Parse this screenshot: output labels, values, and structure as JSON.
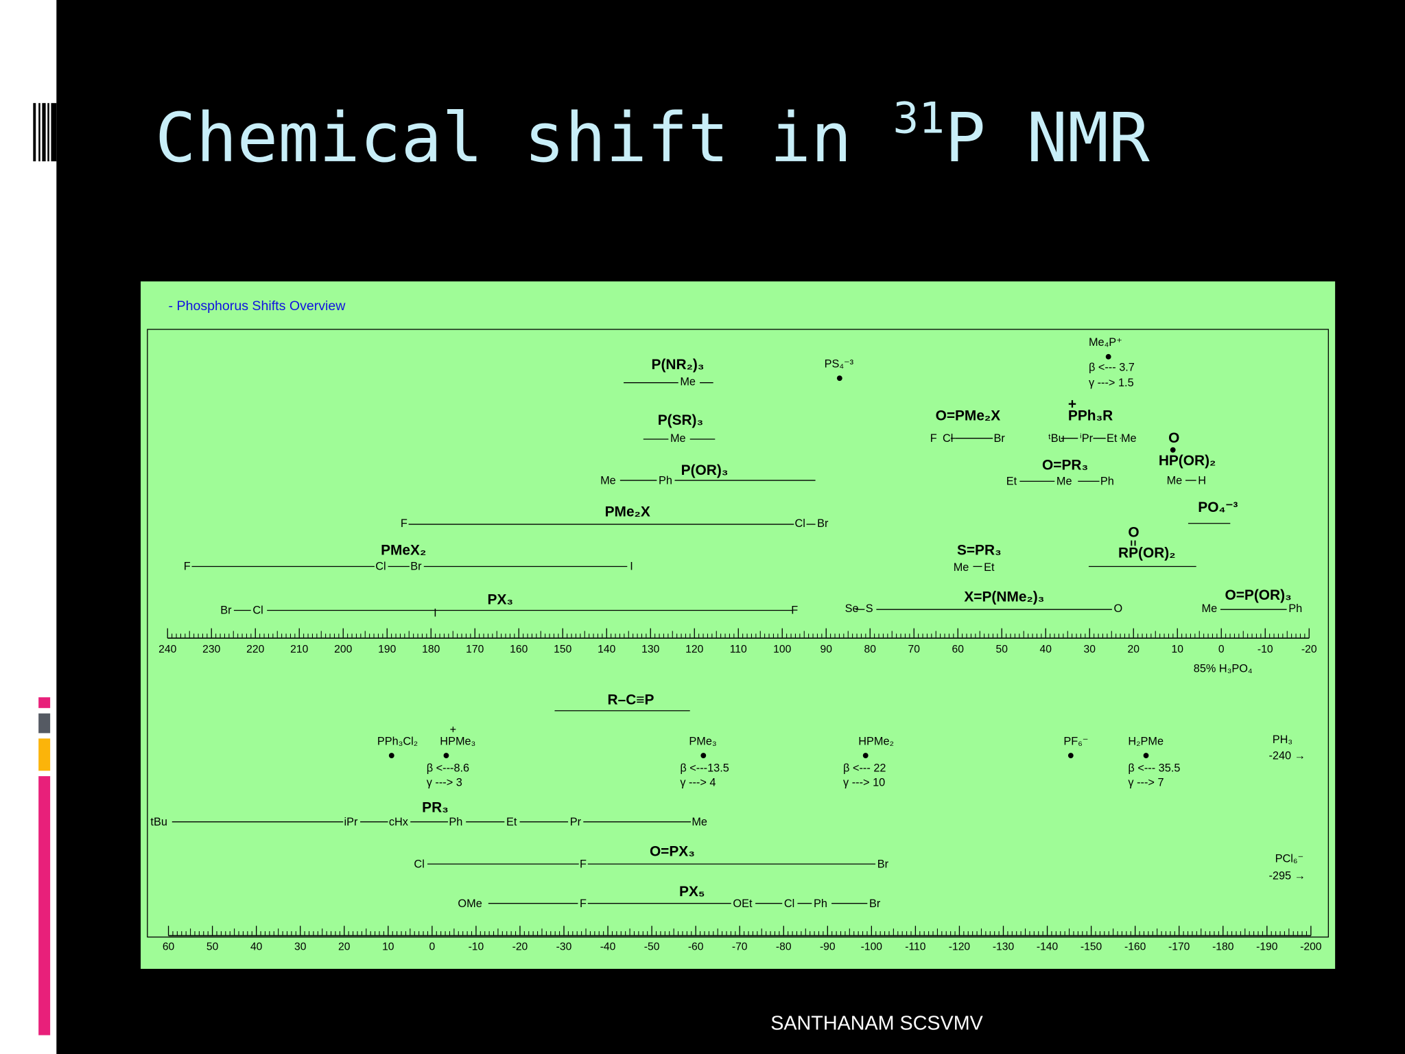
{
  "title": {
    "text": "Chemical shift in ",
    "superscript": "31",
    "rest": "P NMR"
  },
  "panel_title": "- Phosphorus Shifts Overview",
  "top_scale": {
    "ticks": [
      240,
      230,
      220,
      210,
      200,
      190,
      180,
      170,
      160,
      150,
      140,
      130,
      120,
      110,
      100,
      90,
      80,
      70,
      60,
      50,
      40,
      30,
      20,
      10,
      0,
      -10,
      -20
    ],
    "reference": "85% H₃PO₄"
  },
  "bottom_scale": {
    "ticks": [
      60,
      50,
      40,
      30,
      20,
      10,
      0,
      -10,
      -20,
      -30,
      -40,
      -50,
      -60,
      -70,
      -80,
      -90,
      -100,
      -110,
      -120,
      -130,
      -140,
      -150,
      -160,
      -170,
      -180,
      -190,
      -200
    ]
  },
  "labels": [
    "P(NR₂)₃",
    "Me",
    "PS₄⁻³",
    "Me₄P⁺",
    "β <--- 3.7",
    "γ ---> 1.5",
    "P(SR)₃",
    "Me",
    "O=PMe₂X",
    "F",
    "Cl",
    "Br",
    "+",
    "PPh₃R",
    "ᵗBu",
    "ⁱPr",
    "Et",
    "Me",
    "O",
    "HP(OR)₂",
    "Me",
    "H",
    "P(OR)₃",
    "Me",
    "Ph",
    "O=PR₃",
    "Et",
    "Me",
    "Ph",
    "PO₄⁻³",
    "PMe₂X",
    "F",
    "Cl",
    "Br",
    "PMeX₂",
    "F",
    "Cl",
    "Br",
    "I",
    "S=PR₃",
    "Me",
    "Et",
    "O",
    "RP(OR)₂",
    "PX₃",
    "Br",
    "Cl",
    "I",
    "F",
    "Se",
    "S",
    "X=P(NMe₂)₃",
    "O",
    "O=P(OR)₃",
    "Me",
    "Ph",
    "R–C≡P",
    "PPh₃Cl₂",
    "+",
    "HPMe₃",
    "β <---8.6",
    "γ ---> 3",
    "PMe₃",
    "β <---13.5",
    "γ ---> 4",
    "HPMe₂",
    "β <--- 22",
    "γ ---> 10",
    "PF₆⁻",
    "H₂PMe",
    "β <--- 35.5",
    "γ ---> 7",
    "PH₃",
    "-240 →",
    "PR₃",
    "tBu",
    "iPr",
    "cHx",
    "Ph",
    "Et",
    "Pr",
    "Me",
    "O=PX₃",
    "Cl",
    "F",
    "Br",
    "PCl₆⁻",
    "-295 →",
    "PX₅",
    "OMe",
    "F",
    "OEt",
    "Cl",
    "Ph",
    "Br"
  ],
  "footer": "SANTHANAM SCSVMV"
}
